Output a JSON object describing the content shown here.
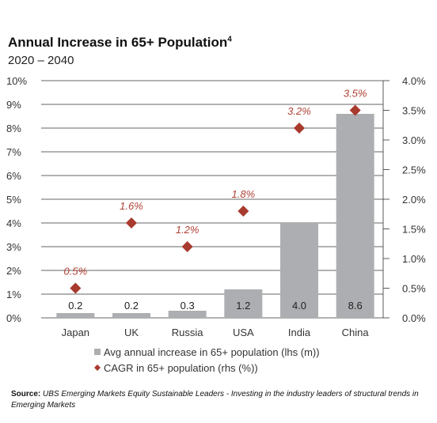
{
  "title": "Annual Increase in 65+ Population",
  "title_sup": "4",
  "subtitle": "2020 – 2040",
  "source_label": "Source:",
  "source_text": "UBS Emerging Markets Equity Sustainable Leaders - Investing in the industry leaders of structural trends in Emerging Markets",
  "colors": {
    "bar": "#adaeb1",
    "marker": "#a83a2e",
    "grid": "#333333"
  },
  "chart_data": {
    "type": "bar",
    "categories": [
      "Japan",
      "UK",
      "Russia",
      "USA",
      "India",
      "China"
    ],
    "series": [
      {
        "name": "Avg annual increase in 65+ population (lhs (m))",
        "type": "bar",
        "axis": "left",
        "values": [
          0.2,
          0.2,
          0.3,
          1.2,
          4.0,
          8.6
        ],
        "labels": [
          "0.2",
          "0.2",
          "0.3",
          "1.2",
          "4.0",
          "8.6"
        ]
      },
      {
        "name": "CAGR in 65+ population (rhs (%))",
        "type": "scatter",
        "axis": "right",
        "values": [
          0.5,
          1.6,
          1.2,
          1.8,
          3.2,
          3.5
        ],
        "labels": [
          "0.5%",
          "1.6%",
          "1.2%",
          "1.8%",
          "3.2%",
          "3.5%"
        ]
      }
    ],
    "y_left": {
      "min": 0,
      "max": 10,
      "ticks": [
        "0%",
        "1%",
        "2%",
        "3%",
        "4%",
        "5%",
        "6%",
        "7%",
        "8%",
        "9%",
        "10%"
      ]
    },
    "y_right": {
      "min": 0,
      "max": 4,
      "ticks": [
        "0.0%",
        "0.5%",
        "1.0%",
        "1.5%",
        "2.0%",
        "2.5%",
        "3.0%",
        "3.5%",
        "4.0%"
      ]
    },
    "grid": true,
    "legend_position": "bottom"
  }
}
